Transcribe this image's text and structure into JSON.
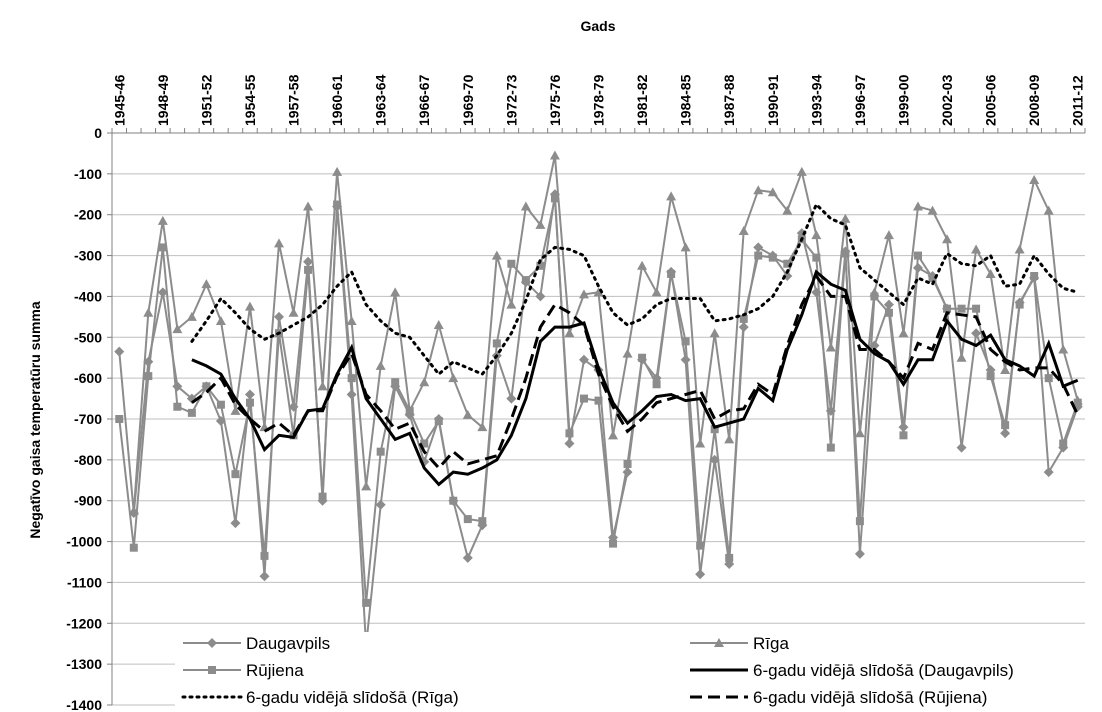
{
  "chart_data": {
    "type": "line",
    "x_label": "Gads",
    "y_label": "Negatīvo gaisa temperatūru summa",
    "categories": [
      "1945-46",
      null,
      null,
      "1948-49",
      null,
      null,
      "1951-52",
      null,
      null,
      "1954-55",
      null,
      null,
      "1957-58",
      null,
      null,
      "1960-61",
      null,
      null,
      "1963-64",
      null,
      null,
      "1966-67",
      null,
      null,
      "1969-70",
      null,
      null,
      "1972-73",
      null,
      null,
      "1975-76",
      null,
      null,
      "1978-79",
      null,
      null,
      "1981-82",
      null,
      null,
      "1984-85",
      null,
      null,
      "1987-88",
      null,
      null,
      "1990-91",
      null,
      null,
      "1993-94",
      null,
      null,
      "1996-97",
      null,
      null,
      "1999-00",
      null,
      null,
      "2002-03",
      null,
      null,
      "2005-06",
      null,
      null,
      "2008-09",
      null,
      null,
      "2011-12"
    ],
    "ylim": [
      -1400,
      0
    ],
    "yticks": [
      0,
      -100,
      -200,
      -300,
      -400,
      -500,
      -600,
      -700,
      -800,
      -900,
      -1000,
      -1100,
      -1200,
      -1300,
      -1400
    ],
    "grid": true,
    "series": [
      {
        "name": "Daugavpils",
        "color": "#8c8c8c",
        "marker": "diamond",
        "dash": "solid",
        "values": [
          -535,
          -930,
          -560,
          -390,
          -620,
          -650,
          -620,
          -705,
          -955,
          -640,
          -1085,
          -450,
          -670,
          -315,
          -900,
          -180,
          -640,
          -1255,
          -910,
          -620,
          -690,
          -805,
          -700,
          -900,
          -1040,
          -960,
          -545,
          -650,
          -365,
          -400,
          -150,
          -760,
          -555,
          -580,
          -990,
          -830,
          -555,
          -600,
          -340,
          -555,
          -1080,
          -800,
          -1055,
          -475,
          -280,
          -300,
          -350,
          -245,
          -390,
          -680,
          -290,
          -1030,
          -520,
          -420,
          -720,
          -330,
          -350,
          -430,
          -770,
          -490,
          -580,
          -735,
          -415,
          -355,
          -830,
          -770,
          -670
        ]
      },
      {
        "name": "Rīga",
        "color": "#8c8c8c",
        "marker": "triangle",
        "dash": "solid",
        "values": [
          null,
          -925,
          -440,
          -215,
          -480,
          -450,
          -370,
          -460,
          -680,
          -425,
          -720,
          -270,
          -440,
          -180,
          -620,
          -95,
          -460,
          -865,
          -570,
          -390,
          -680,
          -610,
          -470,
          -600,
          -690,
          -720,
          -300,
          -420,
          -180,
          -225,
          -55,
          -490,
          -395,
          -390,
          -740,
          -540,
          -325,
          -390,
          -155,
          -280,
          -760,
          -490,
          -750,
          -240,
          -140,
          -145,
          -190,
          -95,
          -250,
          -525,
          -210,
          -735,
          -390,
          -250,
          -490,
          -180,
          -190,
          -260,
          -550,
          -285,
          -345,
          -580,
          -285,
          -115,
          -190,
          -530,
          -655
        ]
      },
      {
        "name": "Rūjiena",
        "color": "#8c8c8c",
        "marker": "square",
        "dash": "solid",
        "values": [
          -700,
          -1015,
          -595,
          -280,
          -670,
          -685,
          -620,
          -665,
          -835,
          -660,
          -1035,
          -490,
          -740,
          -335,
          -890,
          -175,
          -600,
          -1150,
          -780,
          -610,
          -680,
          -760,
          -705,
          -900,
          -945,
          -950,
          -515,
          -320,
          -360,
          -325,
          -160,
          -735,
          -650,
          -655,
          -1005,
          -810,
          -550,
          -615,
          -345,
          -510,
          -1010,
          -725,
          -1040,
          -455,
          -300,
          -305,
          -320,
          -260,
          -305,
          -770,
          -295,
          -950,
          -400,
          -440,
          -740,
          -300,
          -355,
          -430,
          -430,
          -430,
          -595,
          -715,
          -420,
          -350,
          -600,
          -760,
          -660
        ]
      },
      {
        "name": "6-gadu vidējā slīdošā (Daugavpils)",
        "color": "#000000",
        "marker": "none",
        "dash": "solid",
        "values": [
          null,
          null,
          null,
          null,
          null,
          -555,
          -570,
          -590,
          -650,
          -700,
          -775,
          -740,
          -745,
          -680,
          -675,
          -590,
          -525,
          -650,
          -700,
          -750,
          -735,
          -820,
          -860,
          -830,
          -835,
          -820,
          -800,
          -740,
          -650,
          -510,
          -475,
          -475,
          -465,
          -575,
          -660,
          -710,
          -680,
          -645,
          -640,
          -655,
          -650,
          -720,
          -710,
          -700,
          -625,
          -655,
          -530,
          -445,
          -340,
          -370,
          -385,
          -505,
          -540,
          -560,
          -615,
          -555,
          -555,
          -460,
          -505,
          -520,
          -495,
          -555,
          -570,
          -595,
          -515,
          -620,
          -605
        ]
      },
      {
        "name": "6-gadu vidējā slīdošā (Rīga)",
        "color": "#000000",
        "marker": "none",
        "dash": "dot",
        "values": [
          null,
          null,
          null,
          null,
          null,
          -510,
          -460,
          -405,
          -440,
          -480,
          -505,
          -490,
          -470,
          -450,
          -420,
          -375,
          -340,
          -420,
          -460,
          -490,
          -500,
          -545,
          -590,
          -560,
          -575,
          -590,
          -545,
          -490,
          -410,
          -310,
          -280,
          -285,
          -300,
          -375,
          -440,
          -470,
          -455,
          -420,
          -405,
          -405,
          -405,
          -460,
          -455,
          -445,
          -430,
          -400,
          -340,
          -260,
          -175,
          -210,
          -225,
          -330,
          -360,
          -390,
          -420,
          -355,
          -370,
          -295,
          -320,
          -325,
          -300,
          -375,
          -370,
          -300,
          -345,
          -380,
          -390
        ]
      },
      {
        "name": "6-gadu vidējā slīdošā (Rūjiena)",
        "color": "#000000",
        "marker": "none",
        "dash": "dash",
        "values": [
          null,
          null,
          null,
          null,
          null,
          -660,
          -635,
          -600,
          -665,
          -700,
          -730,
          -710,
          -740,
          -680,
          -680,
          -595,
          -540,
          -640,
          -680,
          -725,
          -710,
          -780,
          -820,
          -780,
          -810,
          -800,
          -790,
          -700,
          -600,
          -475,
          -420,
          -440,
          -470,
          -590,
          -670,
          -730,
          -700,
          -660,
          -650,
          -640,
          -630,
          -700,
          -680,
          -675,
          -615,
          -640,
          -520,
          -420,
          -350,
          -400,
          -400,
          -530,
          -530,
          -560,
          -600,
          -515,
          -530,
          -440,
          -445,
          -450,
          -530,
          -560,
          -580,
          -575,
          -575,
          -615,
          -690
        ]
      }
    ]
  }
}
